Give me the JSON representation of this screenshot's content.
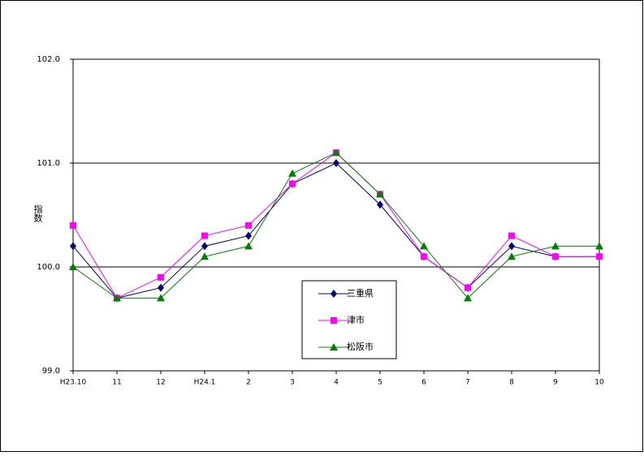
{
  "chart_data": {
    "type": "line",
    "y_label": "指数",
    "categories": [
      "H23.10",
      "11",
      "12",
      "H24.1",
      "2",
      "3",
      "4",
      "5",
      "6",
      "7",
      "8",
      "9",
      "10"
    ],
    "series": [
      {
        "name": "三重県",
        "color": "#000080",
        "marker": "diamond",
        "values": [
          100.2,
          99.7,
          99.8,
          100.2,
          100.3,
          100.8,
          101.0,
          100.6,
          100.1,
          99.8,
          100.2,
          100.1,
          100.1
        ]
      },
      {
        "name": "津市",
        "color": "#ff00ff",
        "marker": "square",
        "values": [
          100.4,
          99.7,
          99.9,
          100.3,
          100.4,
          100.8,
          101.1,
          100.7,
          100.1,
          99.8,
          100.3,
          100.1,
          100.1
        ]
      },
      {
        "name": "松阪市",
        "color": "#008000",
        "marker": "triangle",
        "values": [
          100.0,
          99.7,
          99.7,
          100.1,
          100.2,
          100.9,
          101.1,
          100.7,
          100.2,
          99.7,
          100.1,
          100.2,
          100.2
        ]
      }
    ],
    "ylim": [
      99,
      102
    ],
    "yticks": [
      {
        "value": 99,
        "label": "99.0"
      },
      {
        "value": 100,
        "label": "100.0"
      },
      {
        "value": 101,
        "label": "101.0"
      },
      {
        "value": 102,
        "label": "102.0"
      }
    ],
    "grid": true
  }
}
